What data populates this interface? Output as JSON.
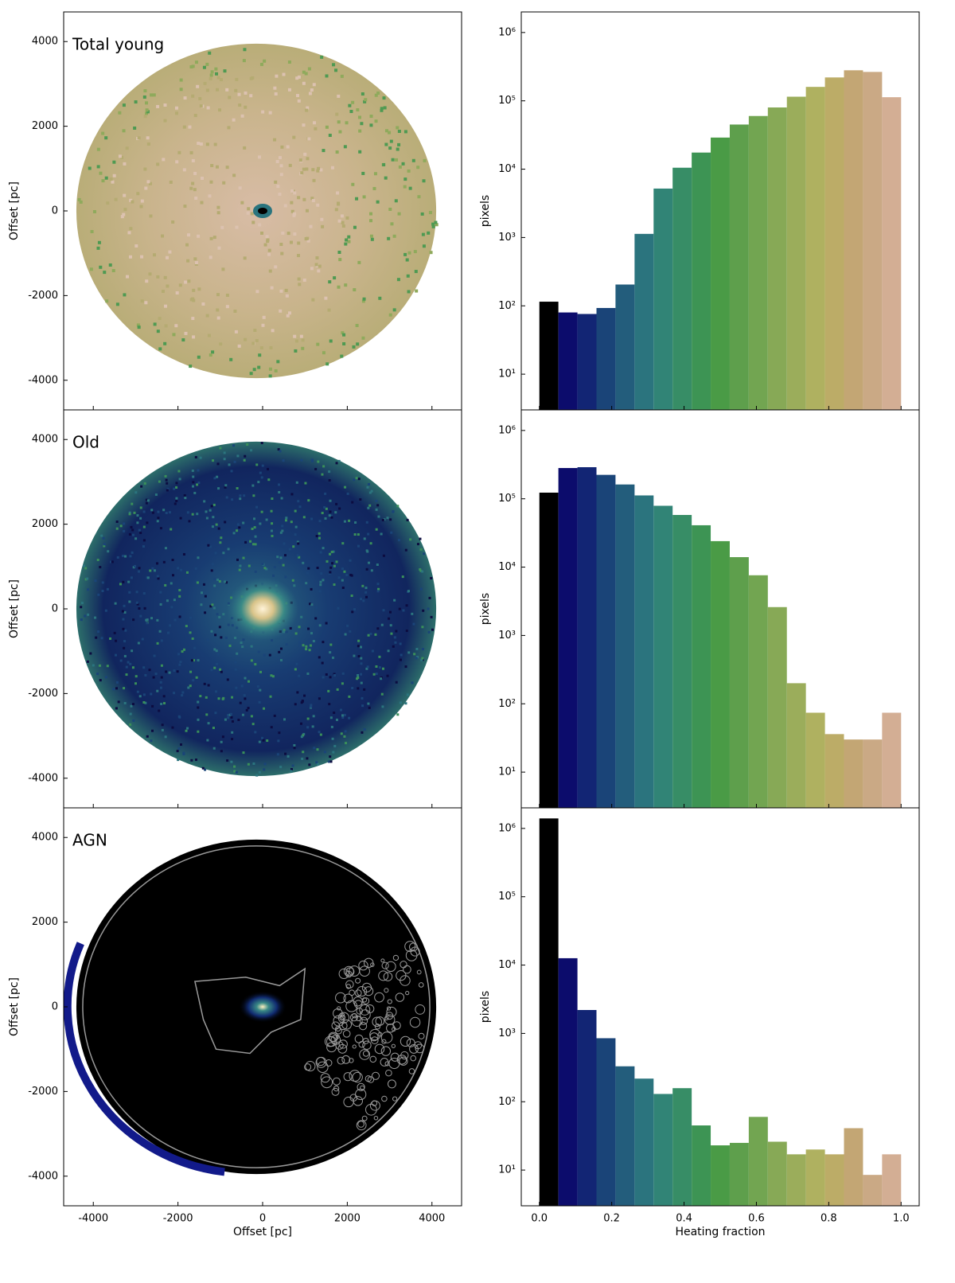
{
  "chart_data": [
    {
      "type": "map",
      "title": "Total young",
      "ylabel": "Offset [pc]",
      "xlim": [
        -4700,
        4700
      ],
      "ylim": [
        -4700,
        4700
      ],
      "yticks": [
        -4000,
        -2000,
        0,
        2000,
        4000
      ]
    },
    {
      "type": "histogram",
      "ylabel": "pixels",
      "log_scale": true,
      "xlim": [
        -0.05,
        1.05
      ],
      "ylim": [
        3,
        2000000
      ],
      "yticks": [
        {
          "value": 10,
          "label": "10¹"
        },
        {
          "value": 100,
          "label": "10²"
        },
        {
          "value": 1000,
          "label": "10³"
        },
        {
          "value": 10000,
          "label": "10⁴"
        },
        {
          "value": 100000,
          "label": "10⁵"
        },
        {
          "value": 1000000,
          "label": "10⁶"
        }
      ],
      "bins": [
        0,
        0.0526,
        0.1053,
        0.1579,
        0.2105,
        0.2632,
        0.3158,
        0.3684,
        0.4211,
        0.4737,
        0.5263,
        0.5789,
        0.6316,
        0.6842,
        0.7368,
        0.7895,
        0.8421,
        0.8947,
        0.9474,
        1
      ],
      "values": [
        115,
        80,
        76,
        93,
        205,
        1130,
        5200,
        10500,
        17500,
        29000,
        45000,
        60000,
        80000,
        115000,
        160000,
        220000,
        280000,
        265000,
        113000
      ],
      "colors": [
        "#000000",
        "#0c0c6c",
        "#122574",
        "#1a4478",
        "#235d7c",
        "#2b747e",
        "#318476",
        "#378d66",
        "#3d9454",
        "#4a9b46",
        "#5e9f4c",
        "#72a551",
        "#87a956",
        "#9bad5b",
        "#afb160",
        "#bcac67",
        "#c3a674",
        "#caa985",
        "#d3ae94"
      ]
    },
    {
      "type": "map",
      "title": "Old",
      "ylabel": "Offset [pc]",
      "xlim": [
        -4700,
        4700
      ],
      "ylim": [
        -4700,
        4700
      ],
      "yticks": [
        -4000,
        -2000,
        0,
        2000,
        4000
      ]
    },
    {
      "type": "histogram",
      "ylabel": "pixels",
      "log_scale": true,
      "xlim": [
        -0.05,
        1.05
      ],
      "ylim": [
        3,
        2000000
      ],
      "yticks": [
        {
          "value": 10,
          "label": "10¹"
        },
        {
          "value": 100,
          "label": "10²"
        },
        {
          "value": 1000,
          "label": "10³"
        },
        {
          "value": 10000,
          "label": "10⁴"
        },
        {
          "value": 100000,
          "label": "10⁵"
        },
        {
          "value": 1000000,
          "label": "10⁶"
        }
      ],
      "bins": [
        0,
        0.0526,
        0.1053,
        0.1579,
        0.2105,
        0.2632,
        0.3158,
        0.3684,
        0.4211,
        0.4737,
        0.5263,
        0.5789,
        0.6316,
        0.6842,
        0.7368,
        0.7895,
        0.8421,
        0.8947,
        0.9474,
        1
      ],
      "values": [
        123000,
        282000,
        290000,
        224000,
        162000,
        112000,
        79000,
        58000,
        41000,
        24000,
        14000,
        7600,
        2600,
        200,
        74,
        36,
        30,
        30,
        74
      ],
      "colors": [
        "#000000",
        "#0c0c6c",
        "#122574",
        "#1a4478",
        "#235d7c",
        "#2b747e",
        "#318476",
        "#378d66",
        "#3d9454",
        "#4a9b46",
        "#5e9f4c",
        "#72a551",
        "#87a956",
        "#9bad5b",
        "#afb160",
        "#bcac67",
        "#c3a674",
        "#caa985",
        "#d3ae94"
      ]
    },
    {
      "type": "map",
      "title": "AGN",
      "ylabel": "Offset [pc]",
      "xlabel": "Offset [pc]",
      "xlim": [
        -4700,
        4700
      ],
      "ylim": [
        -4700,
        4700
      ],
      "xticks": [
        -4000,
        -2000,
        0,
        2000,
        4000
      ],
      "yticks": [
        -4000,
        -2000,
        0,
        2000,
        4000
      ]
    },
    {
      "type": "histogram",
      "ylabel": "pixels",
      "xlabel": "Heating fraction",
      "log_scale": true,
      "xlim": [
        -0.05,
        1.05
      ],
      "ylim": [
        3,
        2000000
      ],
      "xticks": [
        {
          "value": 0,
          "label": "0.0"
        },
        0.2,
        0.4,
        0.6,
        0.8,
        {
          "value": 1,
          "label": "1.0"
        }
      ],
      "yticks": [
        {
          "value": 10,
          "label": "10¹"
        },
        {
          "value": 100,
          "label": "10²"
        },
        {
          "value": 1000,
          "label": "10³"
        },
        {
          "value": 10000,
          "label": "10⁴"
        },
        {
          "value": 100000,
          "label": "10⁵"
        },
        {
          "value": 1000000,
          "label": "10⁶"
        }
      ],
      "bins": [
        0,
        0.0526,
        0.1053,
        0.1579,
        0.2105,
        0.2632,
        0.3158,
        0.3684,
        0.4211,
        0.4737,
        0.5263,
        0.5789,
        0.6316,
        0.6842,
        0.7368,
        0.7895,
        0.8421,
        0.8947,
        0.9474,
        1
      ],
      "values": [
        1400000,
        12600,
        2200,
        850,
        330,
        218,
        130,
        158,
        45,
        23,
        25,
        60,
        26,
        17,
        20,
        17,
        41,
        8.5,
        17
      ],
      "colors": [
        "#000000",
        "#0c0c6c",
        "#122574",
        "#1a4478",
        "#235d7c",
        "#2b747e",
        "#318476",
        "#378d66",
        "#3d9454",
        "#4a9b46",
        "#5e9f4c",
        "#72a551",
        "#87a956",
        "#9bad5b",
        "#afb160",
        "#bcac67",
        "#c3a674",
        "#caa985",
        "#d3ae94"
      ]
    }
  ]
}
